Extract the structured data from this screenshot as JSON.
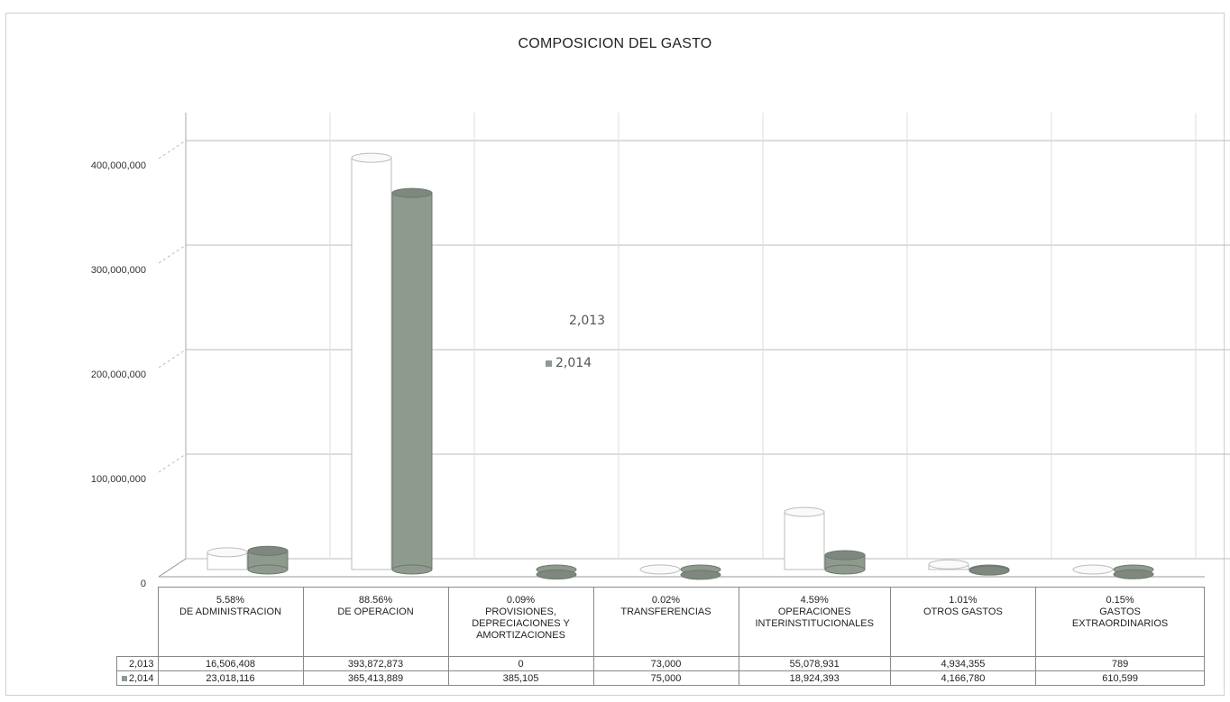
{
  "chart_data": {
    "type": "bar",
    "title": "COMPOSICION DEL GASTO",
    "xlabel": "",
    "ylabel": "",
    "ylim": [
      0,
      450000000
    ],
    "yticks": [
      "0",
      "100,000,000",
      "200,000,000",
      "300,000,000",
      "400,000,000"
    ],
    "ytick_values": [
      0,
      100000000,
      200000000,
      300000000,
      400000000
    ],
    "categories": [
      {
        "pct": "5.58%",
        "name": "DE ADMINISTRACION"
      },
      {
        "pct": "88.56%",
        "name": "DE OPERACION"
      },
      {
        "pct": "0.09%",
        "name": "PROVISIONES, DEPRECIACIONES Y AMORTIZACIONES"
      },
      {
        "pct": "0.02%",
        "name": "TRANSFERENCIAS"
      },
      {
        "pct": "4.59%",
        "name": "OPERACIONES INTERINSTITUCIONALES"
      },
      {
        "pct": "1.01%",
        "name": "OTROS GASTOS"
      },
      {
        "pct": "0.15%",
        "name": "GASTOS EXTRAORDINARIOS"
      }
    ],
    "series": [
      {
        "name": "2,013",
        "color": "#ffffff",
        "values": [
          16506408,
          393872873,
          0,
          73000,
          55078931,
          4934355,
          789
        ],
        "labels": [
          "16,506,408",
          "393,872,873",
          "0",
          "73,000",
          "55,078,931",
          "4,934,355",
          "789"
        ]
      },
      {
        "name": "2,014",
        "color": "#8f9a8f",
        "values": [
          23018116,
          365413889,
          385105,
          75000,
          18924393,
          4166780,
          610599
        ],
        "labels": [
          "23,018,116",
          "365,413,889",
          "385,105",
          "75,000",
          "18,924,393",
          "4,166,780",
          "610,599"
        ]
      }
    ],
    "legend": {
      "placement": "center",
      "entries": [
        "2,013",
        "2,014"
      ]
    },
    "grid": true
  }
}
